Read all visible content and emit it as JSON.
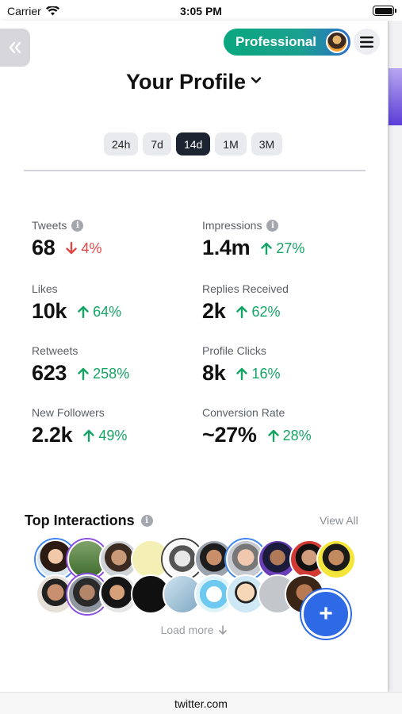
{
  "status": {
    "carrier": "Carrier",
    "time": "3:05 PM"
  },
  "header": {
    "plan_label": "Professional",
    "title": "Your Profile"
  },
  "ranges": [
    {
      "label": "24h",
      "active": false
    },
    {
      "label": "7d",
      "active": false
    },
    {
      "label": "14d",
      "active": true
    },
    {
      "label": "1M",
      "active": false
    },
    {
      "label": "3M",
      "active": false
    }
  ],
  "stats": [
    {
      "label": "Tweets",
      "info": true,
      "value": "68",
      "change": "4%",
      "direction": "down"
    },
    {
      "label": "Impressions",
      "info": true,
      "value": "1.4m",
      "change": "27%",
      "direction": "up"
    },
    {
      "label": "Likes",
      "info": false,
      "value": "10k",
      "change": "64%",
      "direction": "up"
    },
    {
      "label": "Replies Received",
      "info": false,
      "value": "2k",
      "change": "62%",
      "direction": "up"
    },
    {
      "label": "Retweets",
      "info": false,
      "value": "623",
      "change": "258%",
      "direction": "up"
    },
    {
      "label": "Profile Clicks",
      "info": false,
      "value": "8k",
      "change": "16%",
      "direction": "up"
    },
    {
      "label": "New Followers",
      "info": false,
      "value": "2.2k",
      "change": "49%",
      "direction": "up"
    },
    {
      "label": "Conversion Rate",
      "info": false,
      "value": "~27%",
      "change": "28%",
      "direction": "up"
    }
  ],
  "interactions": {
    "title": "Top Interactions",
    "view_all": "View All",
    "load_more": "Load more",
    "add_button": "+"
  },
  "colors": {
    "up": "#16a466",
    "down": "#e04848",
    "accent": "#2e6ae6",
    "pill_start": "#0aa77e",
    "pill_end": "#2d6fc9"
  },
  "browser": {
    "url": "twitter.com"
  }
}
